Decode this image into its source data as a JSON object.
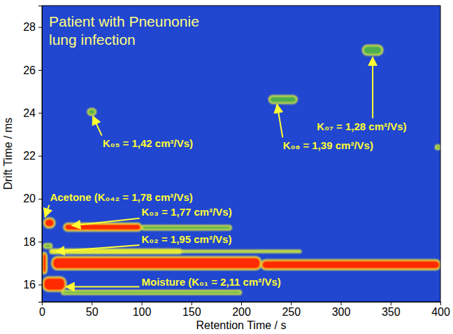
{
  "chart_data": {
    "type": "heatmap",
    "title": [
      "Patient with Pneunonie",
      "lung infection"
    ],
    "x_label": "Retention Time / s",
    "y_label": "Drift Time / ms",
    "xlim": [
      0,
      400
    ],
    "ylim": [
      15.2,
      29
    ],
    "xticks": [
      0,
      50,
      100,
      150,
      200,
      250,
      300,
      350,
      400
    ],
    "yticks": [
      16,
      18,
      20,
      22,
      24,
      26,
      28
    ],
    "color": "#2146d0",
    "spots": [
      {
        "x0": 20,
        "x1": 200,
        "y0": 15.55,
        "y1": 15.72,
        "color": "#4caf50"
      },
      {
        "x0": 1,
        "x1": 24,
        "y0": 15.7,
        "y1": 16.35,
        "color": "#ff2a00"
      },
      {
        "x0": 0,
        "x1": 5,
        "y0": 16.5,
        "y1": 17.5,
        "color": "#ff2a00"
      },
      {
        "x0": 10,
        "x1": 220,
        "y0": 16.7,
        "y1": 17.3,
        "color": "#ff2a00"
      },
      {
        "x0": 220,
        "x1": 400,
        "y0": 16.7,
        "y1": 17.15,
        "color": "#ff2a00"
      },
      {
        "x0": 140,
        "x1": 260,
        "y0": 17.5,
        "y1": 17.6,
        "color": "#4caf50"
      },
      {
        "x0": 8,
        "x1": 140,
        "y0": 17.45,
        "y1": 17.65,
        "color": "#e8e830"
      },
      {
        "x0": 2,
        "x1": 10,
        "y0": 17.7,
        "y1": 17.9,
        "color": "#4caf50"
      },
      {
        "x0": 2,
        "x1": 13,
        "y0": 18.65,
        "y1": 19.1,
        "color": "#ff2a00"
      },
      {
        "x0": 100,
        "x1": 190,
        "y0": 18.55,
        "y1": 18.75,
        "color": "#4caf50"
      },
      {
        "x0": 22,
        "x1": 100,
        "y0": 18.5,
        "y1": 18.85,
        "color": "#ff2a00"
      },
      {
        "x0": 46,
        "x1": 54,
        "y0": 23.9,
        "y1": 24.2,
        "color": "#4caf50"
      },
      {
        "x0": 228,
        "x1": 256,
        "y0": 24.45,
        "y1": 24.8,
        "color": "#4caf50"
      },
      {
        "x0": 322,
        "x1": 342,
        "y0": 26.7,
        "y1": 27.15,
        "color": "#4caf50"
      },
      {
        "x0": 395,
        "x1": 400,
        "y0": 22.3,
        "y1": 22.5,
        "color": "#4caf50"
      }
    ],
    "annotations": [
      {
        "text": "K₀₅ = 1,42 cm²/Vs)",
        "x": 61,
        "y": 22.4,
        "ax": 51,
        "ay": 23.85
      },
      {
        "text": "K₀₆ = 1,39 cm²/Vs)",
        "x": 242,
        "y": 22.3,
        "ax": 236,
        "ay": 24.4
      },
      {
        "text": "K₀₇ = 1,28 cm²/Vs)",
        "x": 276,
        "y": 23.2,
        "ax": 332,
        "ay": 26.6
      },
      {
        "text": "Acetone (K₀₄₂ = 1,78 cm²/Vs)",
        "x": 8,
        "y": 19.9,
        "ax": 3,
        "ay": 19.15
      },
      {
        "text": "K₀₃ = 1,77 cm²/Vs)",
        "x": 100,
        "y": 19.2,
        "ax": 30,
        "ay": 18.75
      },
      {
        "text": "K₀₂ = 1,95 cm²/Vs)",
        "x": 100,
        "y": 17.95,
        "ax": 14,
        "ay": 17.55
      },
      {
        "text": "Moisture (K₀₁ = 2,11 cm²/Vs)",
        "x": 100,
        "y": 15.95,
        "ax": 24,
        "ay": 15.9
      }
    ]
  }
}
